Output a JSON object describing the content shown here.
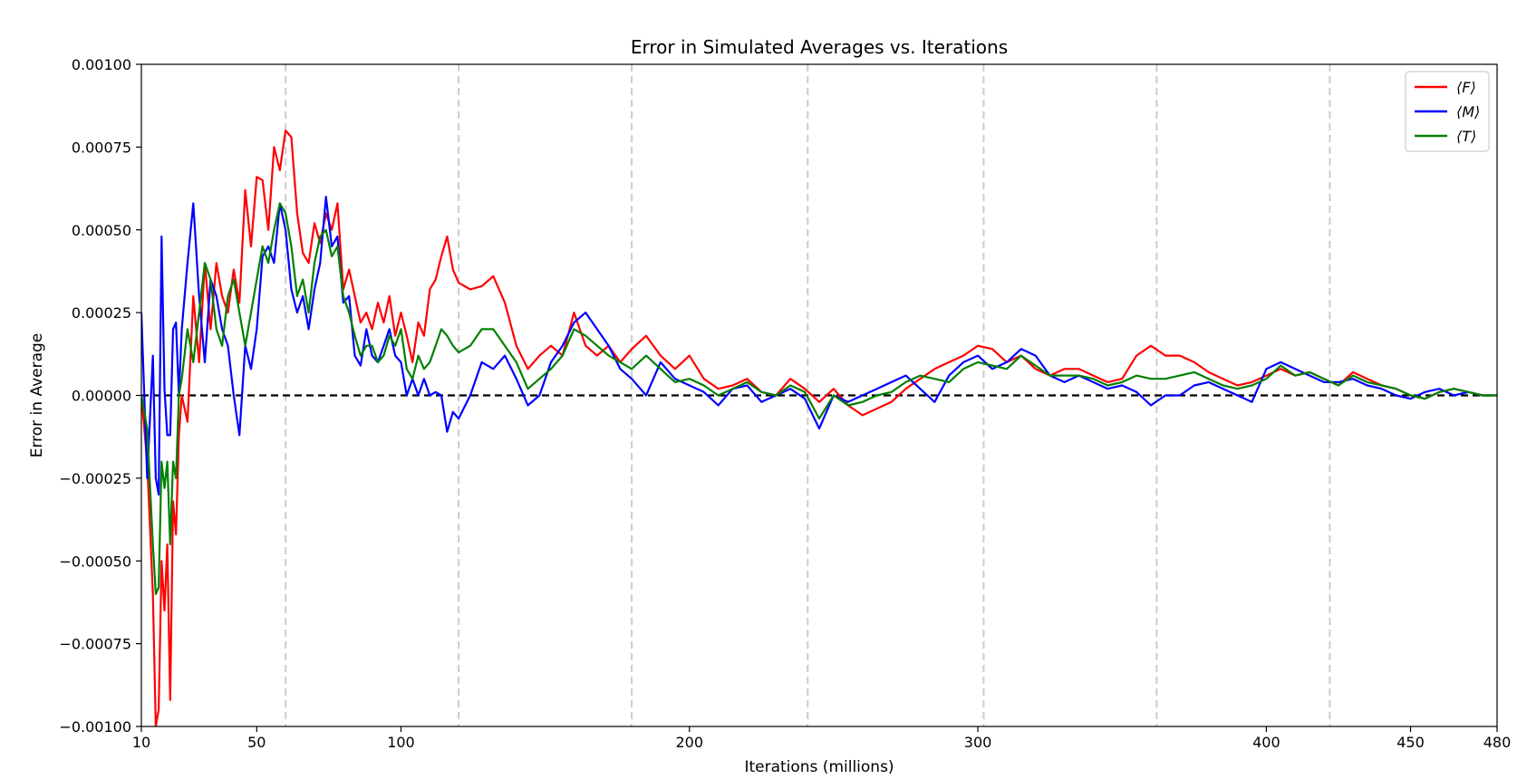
{
  "chart_data": {
    "type": "line",
    "title": "Error in Simulated Averages vs. Iterations",
    "xlabel": "Iterations (millions)",
    "ylabel": "Error in Average",
    "xlim": [
      10,
      480
    ],
    "ylim": [
      -0.001,
      0.001
    ],
    "xticks": [
      10,
      50,
      100,
      200,
      300,
      400,
      450,
      480
    ],
    "xtick_labels": [
      "10",
      "50",
      "100",
      "200",
      "300",
      "400",
      "450",
      "480"
    ],
    "yticks": [
      -0.001,
      -0.00075,
      -0.0005,
      -0.00025,
      0,
      0.00025,
      0.0005,
      0.00075,
      0.001
    ],
    "ytick_labels": [
      "−0.00100",
      "−0.00075",
      "−0.00050",
      "−0.00025",
      "0.00000",
      "0.00025",
      "0.00050",
      "0.00075",
      "0.00100"
    ],
    "vlines": [
      60,
      120,
      180,
      241,
      302,
      362,
      422
    ],
    "hline": 0,
    "grid": false,
    "legend_position": "top-right",
    "colors": {
      "F": "#ff0000",
      "M": "#0000ff",
      "T": "#008000",
      "reference": "#000000",
      "vline": "#cccccc"
    },
    "series": [
      {
        "name": "⟨F⟩",
        "color": "#ff0000",
        "x": [
          10,
          12,
          14,
          15,
          16,
          17,
          18,
          19,
          20,
          21,
          22,
          23,
          24,
          26,
          28,
          30,
          32,
          34,
          36,
          38,
          40,
          42,
          44,
          46,
          48,
          50,
          52,
          54,
          56,
          58,
          60,
          62,
          64,
          66,
          68,
          70,
          72,
          74,
          76,
          78,
          80,
          82,
          84,
          86,
          88,
          90,
          92,
          94,
          96,
          98,
          100,
          102,
          104,
          106,
          108,
          110,
          112,
          114,
          116,
          118,
          120,
          124,
          128,
          132,
          136,
          140,
          144,
          148,
          152,
          156,
          160,
          164,
          168,
          172,
          176,
          180,
          185,
          190,
          195,
          200,
          205,
          210,
          215,
          220,
          225,
          230,
          235,
          240,
          245,
          250,
          255,
          260,
          265,
          270,
          275,
          280,
          285,
          290,
          295,
          300,
          305,
          310,
          315,
          320,
          325,
          330,
          335,
          340,
          345,
          350,
          355,
          360,
          365,
          370,
          375,
          380,
          385,
          390,
          395,
          400,
          405,
          410,
          415,
          420,
          425,
          430,
          435,
          440,
          445,
          450,
          455,
          460,
          465,
          470,
          475,
          480
        ],
        "y": [
          0.0,
          -0.0002,
          -0.0006,
          -0.001,
          -0.00095,
          -0.0005,
          -0.00065,
          -0.00045,
          -0.00092,
          -0.00032,
          -0.00042,
          -0.00012,
          0.0,
          -8e-05,
          0.0003,
          0.0001,
          0.0004,
          0.0002,
          0.0004,
          0.0003,
          0.00025,
          0.00038,
          0.00028,
          0.00062,
          0.00045,
          0.00066,
          0.00065,
          0.0005,
          0.00075,
          0.00068,
          0.0008,
          0.00078,
          0.00055,
          0.00043,
          0.0004,
          0.00052,
          0.00046,
          0.00055,
          0.0005,
          0.00058,
          0.00032,
          0.00038,
          0.0003,
          0.00022,
          0.00025,
          0.0002,
          0.00028,
          0.00022,
          0.0003,
          0.00018,
          0.00025,
          0.00018,
          0.0001,
          0.00022,
          0.00018,
          0.00032,
          0.00035,
          0.00042,
          0.00048,
          0.00038,
          0.00034,
          0.00032,
          0.00033,
          0.00036,
          0.00028,
          0.00015,
          8e-05,
          0.00012,
          0.00015,
          0.00012,
          0.00025,
          0.00015,
          0.00012,
          0.00015,
          0.0001,
          0.00014,
          0.00018,
          0.00012,
          8e-05,
          0.00012,
          5e-05,
          2e-05,
          3e-05,
          5e-05,
          1e-05,
          0.0,
          5e-05,
          2e-05,
          -2e-05,
          2e-05,
          -3e-05,
          -6e-05,
          -4e-05,
          -2e-05,
          2e-05,
          5e-05,
          8e-05,
          0.0001,
          0.00012,
          0.00015,
          0.00014,
          0.0001,
          0.00012,
          8e-05,
          6e-05,
          8e-05,
          8e-05,
          6e-05,
          4e-05,
          5e-05,
          0.00012,
          0.00015,
          0.00012,
          0.00012,
          0.0001,
          7e-05,
          5e-05,
          3e-05,
          4e-05,
          6e-05,
          8e-05,
          6e-05,
          7e-05,
          5e-05,
          3e-05,
          7e-05,
          5e-05,
          3e-05,
          2e-05,
          0.0,
          -1e-05,
          1e-05,
          2e-05,
          1e-05,
          0.0,
          0.0
        ]
      },
      {
        "name": "⟨M⟩",
        "color": "#0000ff",
        "x": [
          10,
          12,
          14,
          15,
          16,
          17,
          18,
          19,
          20,
          21,
          22,
          23,
          24,
          26,
          28,
          30,
          32,
          34,
          36,
          38,
          40,
          42,
          44,
          46,
          48,
          50,
          52,
          54,
          56,
          58,
          60,
          62,
          64,
          66,
          68,
          70,
          72,
          74,
          76,
          78,
          80,
          82,
          84,
          86,
          88,
          90,
          92,
          94,
          96,
          98,
          100,
          102,
          104,
          106,
          108,
          110,
          112,
          114,
          116,
          118,
          120,
          124,
          128,
          132,
          136,
          140,
          144,
          148,
          152,
          156,
          160,
          164,
          168,
          172,
          176,
          180,
          185,
          190,
          195,
          200,
          205,
          210,
          215,
          220,
          225,
          230,
          235,
          240,
          245,
          250,
          255,
          260,
          265,
          270,
          275,
          280,
          285,
          290,
          295,
          300,
          305,
          310,
          315,
          320,
          325,
          330,
          335,
          340,
          345,
          350,
          355,
          360,
          365,
          370,
          375,
          380,
          385,
          390,
          395,
          400,
          405,
          410,
          415,
          420,
          425,
          430,
          435,
          440,
          445,
          450,
          455,
          460,
          465,
          470,
          475,
          480
        ],
        "y": [
          0.00025,
          -0.00025,
          0.00012,
          -0.00025,
          -0.0003,
          0.00048,
          2e-05,
          -0.00012,
          -0.00012,
          0.0002,
          0.00022,
          0.0,
          0.0002,
          0.0004,
          0.00058,
          0.0003,
          0.0001,
          0.00035,
          0.0003,
          0.0002,
          0.00015,
          0.0,
          -0.00012,
          0.00015,
          8e-05,
          0.0002,
          0.00042,
          0.00045,
          0.0004,
          0.00058,
          0.0005,
          0.00032,
          0.00025,
          0.0003,
          0.0002,
          0.00032,
          0.0004,
          0.0006,
          0.00045,
          0.00048,
          0.00028,
          0.0003,
          0.00012,
          9e-05,
          0.0002,
          0.00012,
          0.0001,
          0.00015,
          0.0002,
          0.00012,
          0.0001,
          0.0,
          5e-05,
          0.0,
          5e-05,
          0.0,
          1e-05,
          0.0,
          -0.00011,
          -5e-05,
          -7e-05,
          0.0,
          0.0001,
          8e-05,
          0.00012,
          5e-05,
          -3e-05,
          0.0,
          0.0001,
          0.00015,
          0.00022,
          0.00025,
          0.0002,
          0.00015,
          8e-05,
          5e-05,
          0.0,
          0.0001,
          5e-05,
          3e-05,
          1e-05,
          -3e-05,
          2e-05,
          3e-05,
          -2e-05,
          0.0,
          2e-05,
          -1e-05,
          -0.0001,
          0.0,
          -2e-05,
          0.0,
          2e-05,
          4e-05,
          6e-05,
          2e-05,
          -2e-05,
          6e-05,
          0.0001,
          0.00012,
          8e-05,
          0.0001,
          0.00014,
          0.00012,
          6e-05,
          4e-05,
          6e-05,
          4e-05,
          2e-05,
          3e-05,
          1e-05,
          -3e-05,
          0.0,
          0.0,
          3e-05,
          4e-05,
          2e-05,
          0.0,
          -2e-05,
          8e-05,
          0.0001,
          8e-05,
          6e-05,
          4e-05,
          4e-05,
          5e-05,
          3e-05,
          2e-05,
          0.0,
          -1e-05,
          1e-05,
          2e-05,
          0.0,
          1e-05,
          0.0,
          0.0
        ]
      },
      {
        "name": "⟨T⟩",
        "color": "#008000",
        "x": [
          10,
          12,
          14,
          15,
          16,
          17,
          18,
          19,
          20,
          21,
          22,
          23,
          24,
          26,
          28,
          30,
          32,
          34,
          36,
          38,
          40,
          42,
          44,
          46,
          48,
          50,
          52,
          54,
          56,
          58,
          60,
          62,
          64,
          66,
          68,
          70,
          72,
          74,
          76,
          78,
          80,
          82,
          84,
          86,
          88,
          90,
          92,
          94,
          96,
          98,
          100,
          102,
          104,
          106,
          108,
          110,
          112,
          114,
          116,
          118,
          120,
          124,
          128,
          132,
          136,
          140,
          144,
          148,
          152,
          156,
          160,
          164,
          168,
          172,
          176,
          180,
          185,
          190,
          195,
          200,
          205,
          210,
          215,
          220,
          225,
          230,
          235,
          240,
          245,
          250,
          255,
          260,
          265,
          270,
          275,
          280,
          285,
          290,
          295,
          300,
          305,
          310,
          315,
          320,
          325,
          330,
          335,
          340,
          345,
          350,
          355,
          360,
          365,
          370,
          375,
          380,
          385,
          390,
          395,
          400,
          405,
          410,
          415,
          420,
          425,
          430,
          435,
          440,
          445,
          450,
          455,
          460,
          465,
          470,
          475,
          480
        ],
        "y": [
          0.0,
          -0.0001,
          -0.00045,
          -0.0006,
          -0.00058,
          -0.0002,
          -0.00028,
          -0.0002,
          -0.00045,
          -0.0002,
          -0.00025,
          0.0,
          5e-05,
          0.0002,
          0.0001,
          0.00025,
          0.0004,
          0.00035,
          0.0002,
          0.00015,
          0.0003,
          0.00035,
          0.00025,
          0.00015,
          0.00025,
          0.00035,
          0.00045,
          0.0004,
          0.0005,
          0.00058,
          0.00055,
          0.00045,
          0.0003,
          0.00035,
          0.00025,
          0.0004,
          0.00048,
          0.0005,
          0.00042,
          0.00045,
          0.0003,
          0.00025,
          0.00018,
          0.00012,
          0.00015,
          0.00015,
          0.0001,
          0.00012,
          0.00018,
          0.00015,
          0.0002,
          8e-05,
          5e-05,
          0.00012,
          8e-05,
          0.0001,
          0.00015,
          0.0002,
          0.00018,
          0.00015,
          0.00013,
          0.00015,
          0.0002,
          0.0002,
          0.00015,
          0.0001,
          2e-05,
          5e-05,
          8e-05,
          0.00012,
          0.0002,
          0.00018,
          0.00015,
          0.00012,
          0.0001,
          8e-05,
          0.00012,
          8e-05,
          4e-05,
          5e-05,
          3e-05,
          0.0,
          2e-05,
          4e-05,
          1e-05,
          0.0,
          3e-05,
          1e-05,
          -7e-05,
          0.0,
          -3e-05,
          -2e-05,
          0.0,
          1e-05,
          4e-05,
          6e-05,
          5e-05,
          4e-05,
          8e-05,
          0.0001,
          9e-05,
          8e-05,
          0.00012,
          9e-05,
          6e-05,
          6e-05,
          6e-05,
          5e-05,
          3e-05,
          4e-05,
          6e-05,
          5e-05,
          5e-05,
          6e-05,
          7e-05,
          5e-05,
          3e-05,
          2e-05,
          3e-05,
          5e-05,
          9e-05,
          6e-05,
          7e-05,
          5e-05,
          3e-05,
          6e-05,
          4e-05,
          3e-05,
          2e-05,
          0.0,
          -1e-05,
          1e-05,
          2e-05,
          1e-05,
          0.0,
          0.0
        ]
      }
    ]
  }
}
